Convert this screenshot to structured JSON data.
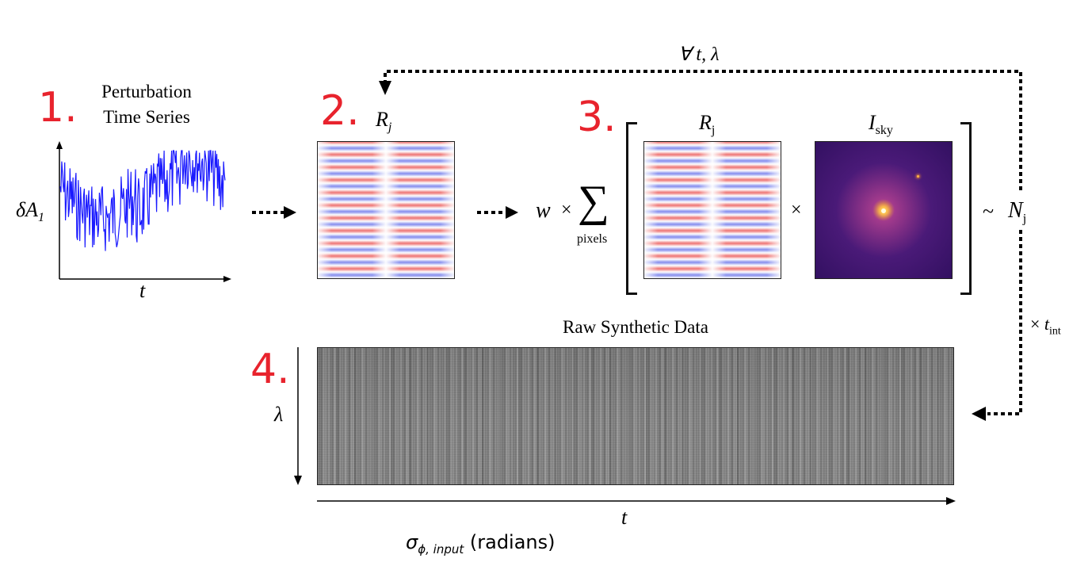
{
  "steps": {
    "s1": "1.",
    "s2": "2.",
    "s3": "3.",
    "s4": "4."
  },
  "panel1": {
    "caption_line1": "Perturbation",
    "caption_line2": "Time Series",
    "y_label": "δA",
    "y_label_sub": "1",
    "x_label": "t",
    "series_color": "#1a1aff"
  },
  "panel2": {
    "label": "R",
    "label_sub": "j"
  },
  "panel3": {
    "weight": "w",
    "times": "×",
    "sum_symbol": "∑",
    "sum_under": "pixels",
    "r_label": "R",
    "r_sub": "j",
    "sky_label": "I",
    "sky_sub": "sky",
    "mult": "×",
    "approx": "~",
    "n_label": "N",
    "n_sub": "j"
  },
  "loop": {
    "label": "∀ t, λ"
  },
  "tint": {
    "times": "×",
    "label": "t",
    "sub": "int"
  },
  "panel4": {
    "title": "Raw Synthetic Data",
    "y_label": "λ",
    "x_label": "t"
  },
  "footer": {
    "sigma": "σ",
    "sigma_sub": "ϕ, input",
    "units": "(radians)"
  },
  "colors": {
    "step_red": "#e8232d",
    "arrow": "#000000"
  }
}
